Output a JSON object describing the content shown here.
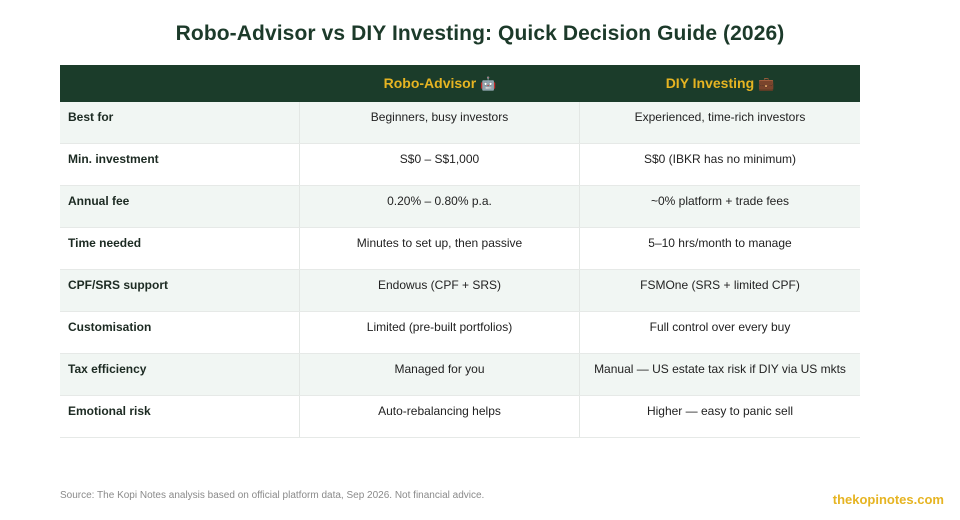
{
  "title": "Robo-Advisor vs DIY Investing: Quick Decision Guide (2026)",
  "table": {
    "headers": {
      "col1": "",
      "col2": "Robo-Advisor",
      "col2_icon": "🤖",
      "col2_icon_name": "robot-icon",
      "col3": "DIY Investing",
      "col3_icon": "💼",
      "col3_icon_name": "briefcase-icon"
    },
    "rows": [
      {
        "label": "Best for",
        "robo": "Beginners, busy investors",
        "diy": "Experienced, time-rich investors"
      },
      {
        "label": "Min. investment",
        "robo": "S$0 – S$1,000",
        "diy": "S$0 (IBKR has no minimum)"
      },
      {
        "label": "Annual fee",
        "robo": "0.20% – 0.80% p.a.",
        "diy": "~0% platform + trade fees"
      },
      {
        "label": "Time needed",
        "robo": "Minutes to set up, then passive",
        "diy": "5–10 hrs/month to manage"
      },
      {
        "label": "CPF/SRS support",
        "robo": "Endowus (CPF + SRS)",
        "diy": "FSMOne (SRS + limited CPF)"
      },
      {
        "label": "Customisation",
        "robo": "Limited (pre-built portfolios)",
        "diy": "Full control over every buy"
      },
      {
        "label": "Tax efficiency",
        "robo": "Managed for you",
        "diy": "Manual — US estate tax risk if DIY via US mkts"
      },
      {
        "label": "Emotional risk",
        "robo": "Auto-rebalancing helps",
        "diy": "Higher — easy to panic sell"
      }
    ]
  },
  "footer": {
    "source": "Source: The Kopi Notes analysis based on official platform data, Sep 2026. Not financial advice.",
    "brand": "thekopinotes.com"
  },
  "colors": {
    "header_bg": "#1b3c2a",
    "accent_gold": "#e6b422",
    "alt_row_bg": "#f1f6f3",
    "title_color": "#1c3a2a"
  }
}
